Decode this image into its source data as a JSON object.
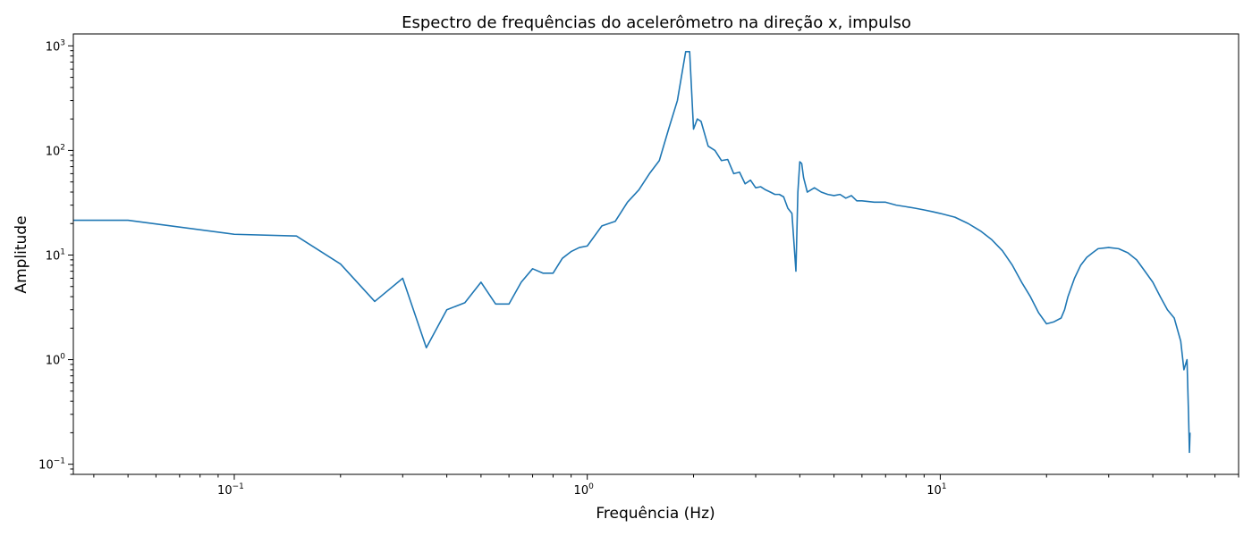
{
  "chart_data": {
    "type": "line",
    "title": "Espectro de frequências do acelerômetro na direção x, impulso",
    "xlabel": "Frequência (Hz)",
    "ylabel": "Amplitude",
    "xscale": "log",
    "yscale": "log",
    "xlim": [
      0.035,
      70
    ],
    "ylim": [
      0.08,
      1300
    ],
    "grid": false,
    "legend": "none",
    "line_color": "#1f77b4",
    "xticks": [
      {
        "value": 0.1,
        "base": "10",
        "exp": "−1"
      },
      {
        "value": 1,
        "base": "10",
        "exp": "0"
      },
      {
        "value": 10,
        "base": "10",
        "exp": "1"
      }
    ],
    "yticks": [
      {
        "value": 0.1,
        "base": "10",
        "exp": "−1"
      },
      {
        "value": 1,
        "base": "10",
        "exp": "0"
      },
      {
        "value": 10,
        "base": "10",
        "exp": "1"
      },
      {
        "value": 100,
        "base": "10",
        "exp": "2"
      },
      {
        "value": 1000,
        "base": "10",
        "exp": "3"
      }
    ],
    "series": [
      {
        "x": [
          0.035,
          0.05,
          0.1,
          0.15,
          0.2,
          0.25,
          0.3,
          0.35,
          0.4,
          0.45,
          0.5,
          0.55,
          0.6,
          0.65,
          0.7,
          0.75,
          0.8,
          0.85,
          0.9,
          0.95,
          1.0,
          1.1,
          1.2,
          1.3,
          1.4,
          1.5,
          1.6,
          1.7,
          1.8,
          1.9,
          1.95,
          2.0,
          2.05,
          2.1,
          2.2,
          2.3,
          2.4,
          2.5,
          2.6,
          2.7,
          2.8,
          2.9,
          3.0,
          3.1,
          3.2,
          3.3,
          3.4,
          3.5,
          3.6,
          3.7,
          3.8,
          3.9,
          3.95,
          4.0,
          4.05,
          4.1,
          4.2,
          4.4,
          4.6,
          4.8,
          5.0,
          5.2,
          5.4,
          5.6,
          5.8,
          6.0,
          6.5,
          7.0,
          7.5,
          8.0,
          8.5,
          9.0,
          9.5,
          10,
          11,
          12,
          13,
          14,
          15,
          16,
          17,
          18,
          19,
          20,
          21,
          22,
          22.5,
          23,
          24,
          25,
          26,
          27,
          28,
          30,
          32,
          34,
          36,
          38,
          40,
          42,
          44,
          46,
          48,
          49,
          50,
          50.5,
          50.8,
          51
        ],
        "y": [
          21.5,
          21.5,
          15.8,
          15.2,
          8.2,
          3.6,
          6.0,
          1.3,
          3.0,
          3.5,
          5.5,
          3.4,
          3.4,
          5.5,
          7.4,
          6.7,
          6.7,
          9.3,
          10.8,
          11.8,
          12.2,
          19,
          21,
          32,
          42,
          60,
          80,
          160,
          300,
          880,
          880,
          160,
          200,
          190,
          110,
          100,
          80,
          82,
          60,
          62,
          48,
          52,
          44,
          45,
          42,
          40,
          38,
          38,
          36,
          28,
          25,
          7.0,
          40,
          78,
          75,
          55,
          40,
          44,
          40,
          38,
          37,
          38,
          35,
          37,
          33,
          33,
          32,
          32,
          30,
          29,
          28,
          27,
          26,
          25,
          23,
          20,
          17,
          14,
          11,
          8,
          5.5,
          4,
          2.8,
          2.2,
          2.3,
          2.5,
          3,
          4,
          6,
          8,
          9.5,
          10.5,
          11.5,
          11.8,
          11.5,
          10.5,
          9,
          7,
          5.5,
          4,
          3,
          2.5,
          1.5,
          0.8,
          1.0,
          0.3,
          0.13,
          0.2
        ]
      }
    ]
  }
}
